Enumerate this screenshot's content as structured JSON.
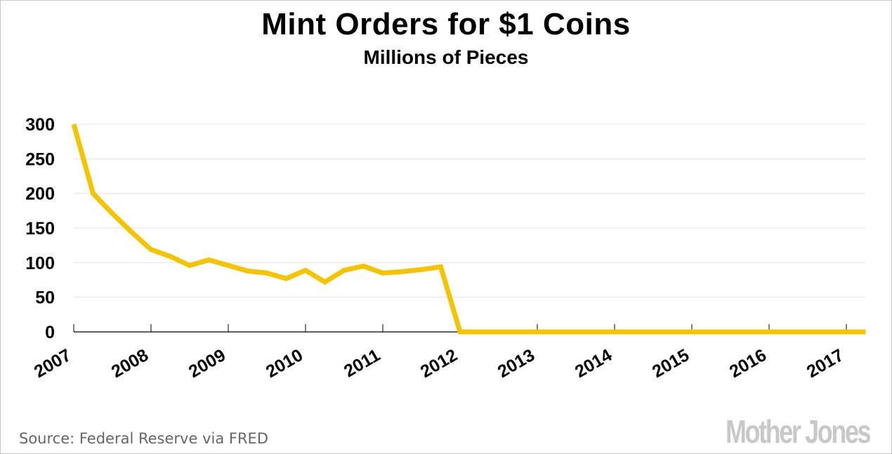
{
  "chart_data": {
    "type": "line",
    "title": "Mint Orders for $1 Coins",
    "subtitle": "Millions of Pieces",
    "xlabel": "",
    "ylabel": "",
    "x_start": 2007,
    "x_step": 0.25,
    "values": [
      300,
      200,
      171,
      144,
      119,
      109,
      96,
      104,
      96,
      88,
      85,
      77,
      89,
      72,
      89,
      95,
      85,
      87,
      90,
      94,
      0,
      0,
      0,
      0,
      0,
      0,
      0,
      0,
      0,
      0,
      0,
      0,
      0,
      0,
      0,
      0,
      0,
      0,
      0,
      0,
      0,
      0
    ],
    "xlim": [
      2007,
      2017.25
    ],
    "ylim": [
      0,
      300
    ],
    "yticks": [
      0,
      50,
      100,
      150,
      200,
      250,
      300
    ],
    "ytick_labels": [
      "0",
      "50",
      "100",
      "150",
      "200",
      "250",
      "300"
    ],
    "xticks": [
      2007,
      2008,
      2009,
      2010,
      2011,
      2012,
      2013,
      2014,
      2015,
      2016,
      2017
    ],
    "xtick_labels": [
      "2007",
      "2008",
      "2009",
      "2010",
      "2011",
      "2012",
      "2013",
      "2014",
      "2015",
      "2016",
      "2017"
    ],
    "grid": true,
    "line_color": "#f5c400"
  },
  "source": "Source: Federal Reserve via FRED",
  "logo": "Mother Jones"
}
